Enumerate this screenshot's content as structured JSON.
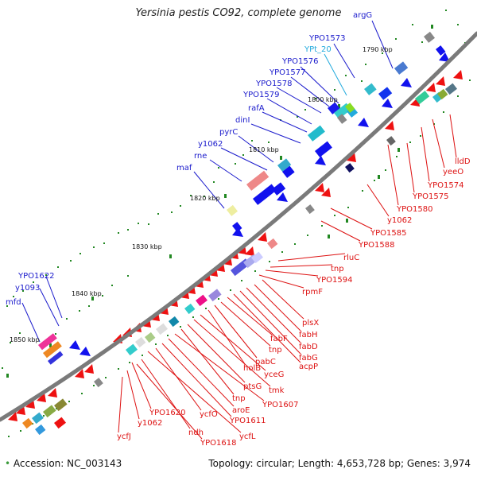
{
  "title": "Yersinia pestis CO92, complete genome",
  "accession": "Accession: NC_003143",
  "summary": "Topology: circular; Length: 4,653,728 bp; Genes: 3,974",
  "colors": {
    "backbone": "#7a7a7a",
    "forward_label": "#1a1acc",
    "reverse_label": "#dd1111",
    "trna_label": "#22aadd",
    "tick": "#228822"
  },
  "scale_labels": [
    "1790 kbp",
    "1800 kbp",
    "1810 kbp",
    "1820 kbp",
    "1830 kbp",
    "1840 kbp",
    "1850 kbp"
  ],
  "forward_genes": [
    {
      "name": "argG",
      "color": "forward"
    },
    {
      "name": "YPO1573",
      "color": "forward"
    },
    {
      "name": "YPt_20",
      "color": "trna"
    },
    {
      "name": "YPO1576",
      "color": "forward"
    },
    {
      "name": "YPO1577",
      "color": "forward"
    },
    {
      "name": "YPO1578",
      "color": "forward"
    },
    {
      "name": "YPO1579",
      "color": "forward"
    },
    {
      "name": "rafA",
      "color": "forward"
    },
    {
      "name": "dinI",
      "color": "forward"
    },
    {
      "name": "pyrC",
      "color": "forward"
    },
    {
      "name": "y1062",
      "color": "forward"
    },
    {
      "name": "rne",
      "color": "forward"
    },
    {
      "name": "maf",
      "color": "forward"
    },
    {
      "name": "YPO1622",
      "color": "forward"
    },
    {
      "name": "y1093",
      "color": "forward"
    },
    {
      "name": "mfd",
      "color": "forward"
    }
  ],
  "reverse_genes": [
    {
      "name": "lldD"
    },
    {
      "name": "yeeO"
    },
    {
      "name": "YPO1574"
    },
    {
      "name": "YPO1575"
    },
    {
      "name": "YPO1580"
    },
    {
      "name": "y1062"
    },
    {
      "name": "YPO1585"
    },
    {
      "name": "YPO1588"
    },
    {
      "name": "rluC"
    },
    {
      "name": "tnp"
    },
    {
      "name": "YPO1594"
    },
    {
      "name": "rpmF"
    },
    {
      "name": "plsX"
    },
    {
      "name": "fabH"
    },
    {
      "name": "fabD"
    },
    {
      "name": "fabG"
    },
    {
      "name": "acpP"
    },
    {
      "name": "fabF"
    },
    {
      "name": "tnp"
    },
    {
      "name": "pabC"
    },
    {
      "name": "holB"
    },
    {
      "name": "yceG"
    },
    {
      "name": "tmk"
    },
    {
      "name": "ptsG"
    },
    {
      "name": "tnp"
    },
    {
      "name": "YPO1607"
    },
    {
      "name": "aroE"
    },
    {
      "name": "YPO1611"
    },
    {
      "name": "ycfO"
    },
    {
      "name": "ycfL"
    },
    {
      "name": "YPO1620"
    },
    {
      "name": "ndh"
    },
    {
      "name": "YPO1618"
    },
    {
      "name": "y1062"
    },
    {
      "name": "ycfJ"
    }
  ]
}
